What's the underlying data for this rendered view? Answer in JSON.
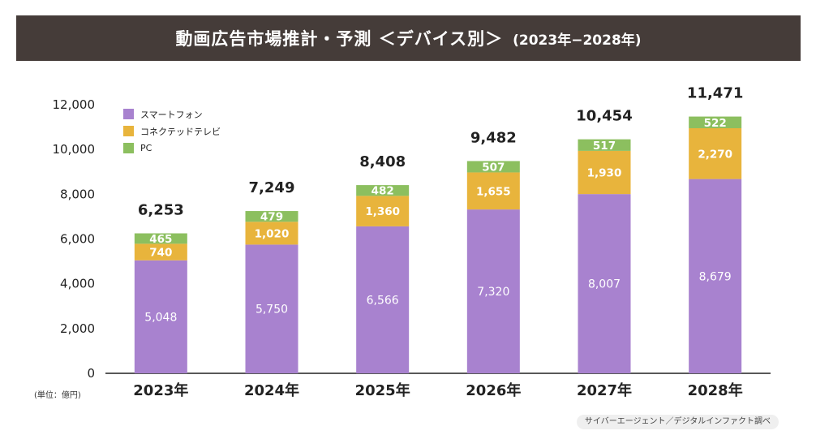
{
  "header": {
    "title": "動画広告市場推計・予測 ＜デバイス別＞",
    "subtitle": "(2023年−2028年)"
  },
  "unit_note": "(単位：億円)",
  "source": "サイバーエージェント／デジタルインファクト調べ",
  "legend": [
    {
      "label": "スマートフォン",
      "color": "#a882cf"
    },
    {
      "label": "コネクテッドテレビ",
      "color": "#e8b43c"
    },
    {
      "label": "PC",
      "color": "#8cbf5f"
    }
  ],
  "chart_data": {
    "type": "bar",
    "stacked": true,
    "categories": [
      "2023年",
      "2024年",
      "2025年",
      "2026年",
      "2027年",
      "2028年"
    ],
    "series": [
      {
        "name": "スマートフォン",
        "color": "#a882cf",
        "values": [
          5048,
          5750,
          6566,
          7320,
          8007,
          8679
        ],
        "labels": [
          "5,048",
          "5,750",
          "6,566",
          "7,320",
          "8,007",
          "8,679"
        ]
      },
      {
        "name": "コネクテッドテレビ",
        "color": "#e8b43c",
        "values": [
          740,
          1020,
          1360,
          1655,
          1930,
          2270
        ],
        "labels": [
          "740",
          "1,020",
          "1,360",
          "1,655",
          "1,930",
          "2,270"
        ]
      },
      {
        "name": "PC",
        "color": "#8cbf5f",
        "values": [
          465,
          479,
          482,
          507,
          517,
          522
        ],
        "labels": [
          "465",
          "479",
          "482",
          "507",
          "517",
          "522"
        ]
      }
    ],
    "totals": [
      6253,
      7249,
      8408,
      9482,
      10454,
      11471
    ],
    "total_labels": [
      "6,253",
      "7,249",
      "8,408",
      "9,482",
      "10,454",
      "11,471"
    ],
    "ylim": [
      0,
      12000
    ],
    "yticks": [
      0,
      2000,
      4000,
      6000,
      8000,
      10000,
      12000
    ],
    "ytick_labels": [
      "0",
      "2,000",
      "4,000",
      "6,000",
      "8,000",
      "10,000",
      "12,000"
    ],
    "xlabel": "",
    "ylabel": "",
    "grid": false,
    "legend_position": "top-left"
  }
}
